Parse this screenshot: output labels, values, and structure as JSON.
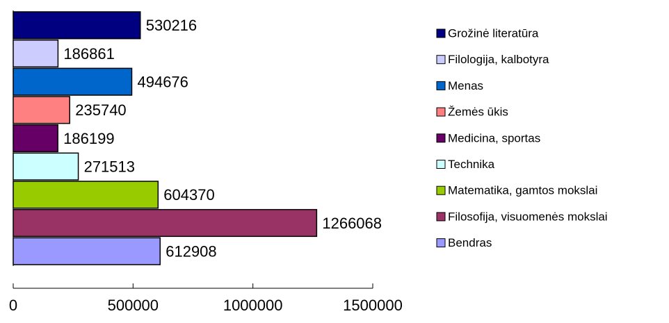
{
  "chart_data": {
    "type": "bar",
    "orientation": "horizontal",
    "series": [
      {
        "name": "Grožinė literatūra",
        "color": "#000080",
        "values": [
          530216
        ]
      },
      {
        "name": "Filologija, kalbotyra",
        "color": "#ccccff",
        "values": [
          186861
        ]
      },
      {
        "name": "Menas",
        "color": "#0066cc",
        "values": [
          494676
        ]
      },
      {
        "name": "Žemės ūkis",
        "color": "#ff8080",
        "values": [
          235740
        ]
      },
      {
        "name": "Medicina, sportas",
        "color": "#660066",
        "values": [
          186199
        ]
      },
      {
        "name": "Technika",
        "color": "#ccffff",
        "values": [
          271513
        ]
      },
      {
        "name": "Matematika, gamtos mokslai",
        "color": "#99cc00",
        "values": [
          604370
        ]
      },
      {
        "name": "Filosofija, visuomenės mokslai",
        "color": "#993366",
        "values": [
          1266068
        ]
      },
      {
        "name": "Bendras",
        "color": "#9999ff",
        "values": [
          612908
        ]
      }
    ],
    "xlim": [
      0,
      1500000
    ],
    "xticks": [
      0,
      500000,
      1000000,
      1500000
    ],
    "legend": "right"
  }
}
